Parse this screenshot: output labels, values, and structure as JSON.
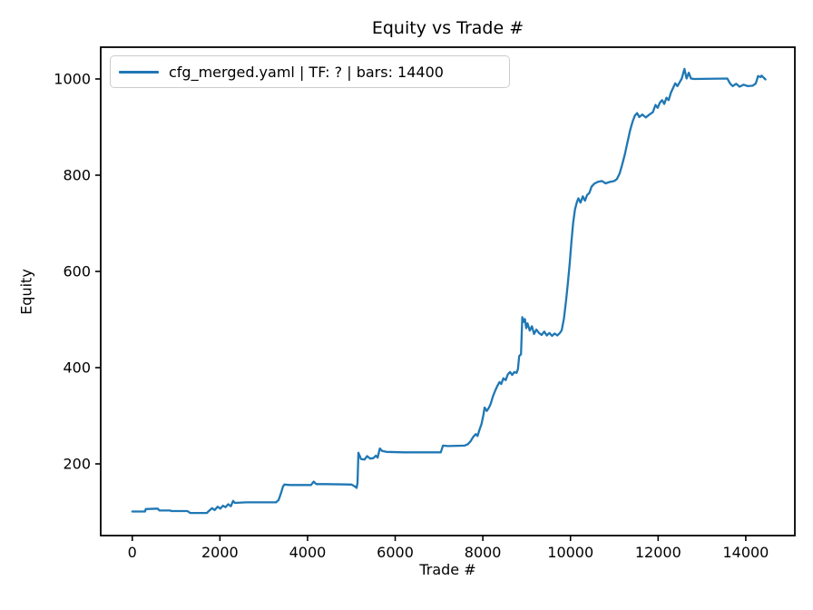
{
  "chart_data": {
    "type": "line",
    "title": "Equity vs Trade #",
    "xlabel": "Trade #",
    "ylabel": "Equity",
    "grid": false,
    "legend": {
      "position": "upper left",
      "entries": [
        {
          "label": "cfg_merged.yaml | TF: ? | bars: 14400",
          "color": "#1f77b4"
        }
      ]
    },
    "xlim": [
      -720,
      15120
    ],
    "ylim": [
      51,
      1066
    ],
    "x_ticks": [
      0,
      2000,
      4000,
      6000,
      8000,
      10000,
      12000,
      14000
    ],
    "y_ticks": [
      200,
      400,
      600,
      800,
      1000
    ],
    "axis_color": "#000000",
    "series": [
      {
        "name": "cfg_merged.yaml | TF: ? | bars: 14400",
        "color": "#1f77b4",
        "points": [
          [
            0,
            101
          ],
          [
            290,
            101
          ],
          [
            310,
            106
          ],
          [
            580,
            107
          ],
          [
            620,
            103
          ],
          [
            860,
            103
          ],
          [
            900,
            102
          ],
          [
            1260,
            102
          ],
          [
            1320,
            98
          ],
          [
            1700,
            98
          ],
          [
            1760,
            103
          ],
          [
            1820,
            108
          ],
          [
            1880,
            104
          ],
          [
            1950,
            111
          ],
          [
            2010,
            107
          ],
          [
            2070,
            113
          ],
          [
            2130,
            110
          ],
          [
            2190,
            116
          ],
          [
            2250,
            112
          ],
          [
            2300,
            123
          ],
          [
            2340,
            119
          ],
          [
            2600,
            120
          ],
          [
            3280,
            120
          ],
          [
            3340,
            125
          ],
          [
            3400,
            141
          ],
          [
            3440,
            153
          ],
          [
            3470,
            157
          ],
          [
            3600,
            156
          ],
          [
            4080,
            156
          ],
          [
            4140,
            163
          ],
          [
            4200,
            158
          ],
          [
            4400,
            158
          ],
          [
            5000,
            157
          ],
          [
            5080,
            153
          ],
          [
            5120,
            150
          ],
          [
            5140,
            160
          ],
          [
            5160,
            223
          ],
          [
            5220,
            210
          ],
          [
            5300,
            209
          ],
          [
            5360,
            216
          ],
          [
            5430,
            211
          ],
          [
            5500,
            212
          ],
          [
            5560,
            217
          ],
          [
            5600,
            213
          ],
          [
            5650,
            232
          ],
          [
            5700,
            227
          ],
          [
            5800,
            225
          ],
          [
            6200,
            224
          ],
          [
            7040,
            224
          ],
          [
            7090,
            238
          ],
          [
            7200,
            237
          ],
          [
            7580,
            238
          ],
          [
            7660,
            241
          ],
          [
            7720,
            247
          ],
          [
            7780,
            256
          ],
          [
            7840,
            262
          ],
          [
            7880,
            258
          ],
          [
            7920,
            270
          ],
          [
            7970,
            283
          ],
          [
            8010,
            300
          ],
          [
            8040,
            317
          ],
          [
            8090,
            310
          ],
          [
            8140,
            317
          ],
          [
            8180,
            325
          ],
          [
            8230,
            340
          ],
          [
            8280,
            352
          ],
          [
            8330,
            362
          ],
          [
            8380,
            370
          ],
          [
            8420,
            366
          ],
          [
            8470,
            378
          ],
          [
            8520,
            374
          ],
          [
            8570,
            386
          ],
          [
            8620,
            391
          ],
          [
            8670,
            385
          ],
          [
            8720,
            391
          ],
          [
            8770,
            389
          ],
          [
            8800,
            397
          ],
          [
            8830,
            424
          ],
          [
            8870,
            428
          ],
          [
            8900,
            505
          ],
          [
            8930,
            495
          ],
          [
            8960,
            501
          ],
          [
            8990,
            482
          ],
          [
            9020,
            492
          ],
          [
            9070,
            477
          ],
          [
            9120,
            486
          ],
          [
            9170,
            470
          ],
          [
            9220,
            479
          ],
          [
            9280,
            472
          ],
          [
            9340,
            468
          ],
          [
            9400,
            475
          ],
          [
            9460,
            467
          ],
          [
            9520,
            472
          ],
          [
            9580,
            466
          ],
          [
            9640,
            471
          ],
          [
            9700,
            467
          ],
          [
            9760,
            472
          ],
          [
            9800,
            478
          ],
          [
            9850,
            502
          ],
          [
            9900,
            540
          ],
          [
            9940,
            575
          ],
          [
            9980,
            615
          ],
          [
            10020,
            660
          ],
          [
            10060,
            700
          ],
          [
            10100,
            728
          ],
          [
            10140,
            742
          ],
          [
            10180,
            752
          ],
          [
            10230,
            743
          ],
          [
            10280,
            756
          ],
          [
            10330,
            747
          ],
          [
            10380,
            759
          ],
          [
            10430,
            763
          ],
          [
            10480,
            776
          ],
          [
            10540,
            782
          ],
          [
            10620,
            786
          ],
          [
            10720,
            788
          ],
          [
            10800,
            783
          ],
          [
            10900,
            786
          ],
          [
            11000,
            788
          ],
          [
            11060,
            792
          ],
          [
            11120,
            803
          ],
          [
            11180,
            822
          ],
          [
            11240,
            843
          ],
          [
            11300,
            868
          ],
          [
            11360,
            893
          ],
          [
            11420,
            912
          ],
          [
            11470,
            924
          ],
          [
            11520,
            929
          ],
          [
            11570,
            921
          ],
          [
            11640,
            926
          ],
          [
            11720,
            920
          ],
          [
            11800,
            926
          ],
          [
            11880,
            931
          ],
          [
            11940,
            946
          ],
          [
            11990,
            940
          ],
          [
            12040,
            951
          ],
          [
            12090,
            956
          ],
          [
            12140,
            948
          ],
          [
            12190,
            961
          ],
          [
            12240,
            956
          ],
          [
            12290,
            971
          ],
          [
            12340,
            981
          ],
          [
            12390,
            991
          ],
          [
            12440,
            985
          ],
          [
            12490,
            993
          ],
          [
            12540,
            1001
          ],
          [
            12600,
            1021
          ],
          [
            12650,
            1001
          ],
          [
            12700,
            1013
          ],
          [
            12750,
            1001
          ],
          [
            12820,
            1000
          ],
          [
            13580,
            1001
          ],
          [
            13640,
            991
          ],
          [
            13700,
            985
          ],
          [
            13780,
            990
          ],
          [
            13860,
            984
          ],
          [
            13950,
            988
          ],
          [
            14050,
            985
          ],
          [
            14160,
            986
          ],
          [
            14230,
            991
          ],
          [
            14280,
            1006
          ],
          [
            14340,
            1004
          ],
          [
            14360,
            1007
          ],
          [
            14450,
            999
          ]
        ]
      }
    ]
  }
}
